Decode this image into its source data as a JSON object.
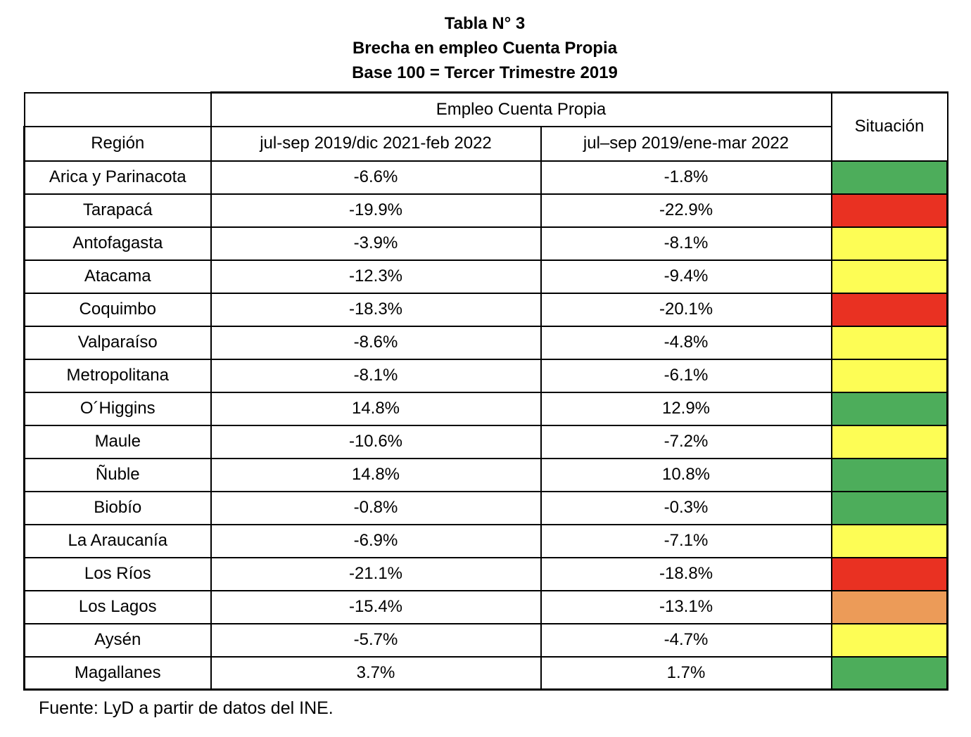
{
  "title": {
    "line1": "Tabla N° 3",
    "line2": "Brecha en empleo Cuenta Propia",
    "line3": "Base 100 = Tercer Trimestre 2019"
  },
  "table": {
    "group_header": "Empleo Cuenta Propia",
    "situacion_header": "Situación",
    "region_header": "Región",
    "period1_header": "jul-sep 2019/dic 2021-feb 2022",
    "period2_header": "jul–sep 2019/ene-mar 2022",
    "rows": [
      {
        "region": "Arica y Parinacota",
        "p1": "-6.6%",
        "p2": "-1.8%",
        "status": "green"
      },
      {
        "region": "Tarapacá",
        "p1": "-19.9%",
        "p2": "-22.9%",
        "status": "red"
      },
      {
        "region": "Antofagasta",
        "p1": "-3.9%",
        "p2": "-8.1%",
        "status": "yellow"
      },
      {
        "region": "Atacama",
        "p1": "-12.3%",
        "p2": "-9.4%",
        "status": "yellow"
      },
      {
        "region": "Coquimbo",
        "p1": "-18.3%",
        "p2": "-20.1%",
        "status": "red"
      },
      {
        "region": "Valparaíso",
        "p1": "-8.6%",
        "p2": "-4.8%",
        "status": "yellow"
      },
      {
        "region": "Metropolitana",
        "p1": "-8.1%",
        "p2": "-6.1%",
        "status": "yellow"
      },
      {
        "region": "O´Higgins",
        "p1": "14.8%",
        "p2": "12.9%",
        "status": "green"
      },
      {
        "region": "Maule",
        "p1": "-10.6%",
        "p2": "-7.2%",
        "status": "yellow"
      },
      {
        "region": "Ñuble",
        "p1": "14.8%",
        "p2": "10.8%",
        "status": "green"
      },
      {
        "region": "Biobío",
        "p1": "-0.8%",
        "p2": "-0.3%",
        "status": "green"
      },
      {
        "region": "La Araucanía",
        "p1": "-6.9%",
        "p2": "-7.1%",
        "status": "yellow"
      },
      {
        "region": "Los Ríos",
        "p1": "-21.1%",
        "p2": "-18.8%",
        "status": "red"
      },
      {
        "region": "Los Lagos",
        "p1": "-15.4%",
        "p2": "-13.1%",
        "status": "orange"
      },
      {
        "region": "Aysén",
        "p1": "-5.7%",
        "p2": "-4.7%",
        "status": "yellow"
      },
      {
        "region": "Magallanes",
        "p1": "3.7%",
        "p2": "1.7%",
        "status": "green"
      }
    ]
  },
  "status_colors": {
    "green": "#4dad5b",
    "red": "#e93122",
    "yellow": "#fdfd55",
    "orange": "#ec9b58"
  },
  "footer": "Fuente: LyD a partir de datos del INE."
}
